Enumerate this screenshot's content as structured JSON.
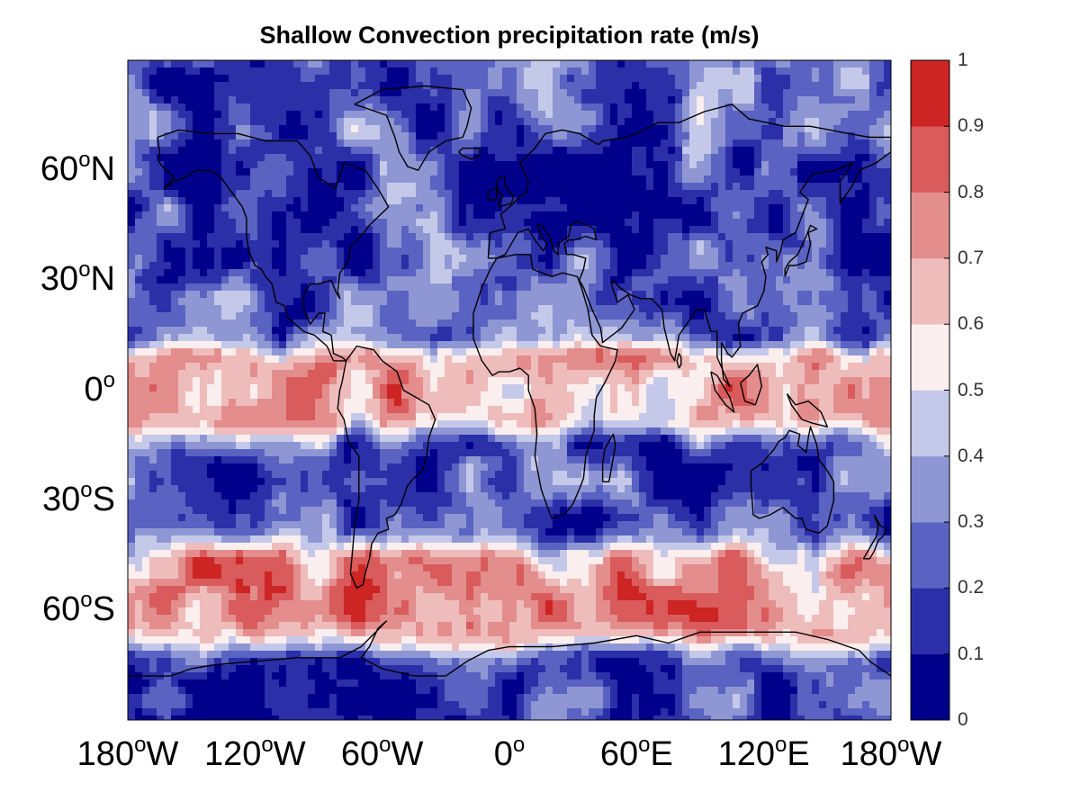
{
  "title": "Shallow Convection precipitation rate (m/s)",
  "latitude_ticks": [
    {
      "deg": "60",
      "hem": "N"
    },
    {
      "deg": "30",
      "hem": "N"
    },
    {
      "deg": "0",
      "hem": ""
    },
    {
      "deg": "30",
      "hem": "S"
    },
    {
      "deg": "60",
      "hem": "S"
    }
  ],
  "longitude_ticks": [
    {
      "deg": "180",
      "hem": "W"
    },
    {
      "deg": "120",
      "hem": "W"
    },
    {
      "deg": "60",
      "hem": "W"
    },
    {
      "deg": "0",
      "hem": ""
    },
    {
      "deg": "60",
      "hem": "E"
    },
    {
      "deg": "120",
      "hem": "E"
    },
    {
      "deg": "180",
      "hem": "W"
    }
  ],
  "degree_symbol": "o",
  "colorbar": {
    "ticks": [
      "0",
      "0.1",
      "0.2",
      "0.3",
      "0.4",
      "0.5",
      "0.6",
      "0.7",
      "0.8",
      "0.9",
      "1"
    ],
    "colors": [
      "#00008b",
      "#2b2fa8",
      "#5a62c2",
      "#8e97d3",
      "#c5c9e9",
      "#fbeeee",
      "#efbcbc",
      "#e38d8d",
      "#d95b5b",
      "#cd2424"
    ]
  },
  "chart_data": {
    "type": "heatmap",
    "title": "Shallow Convection precipitation rate (m/s)",
    "projection": "equirectangular",
    "lon_range": [
      -180,
      180
    ],
    "lat_range": [
      -90,
      90
    ],
    "color_range": [
      0,
      1
    ],
    "levels": [
      0,
      0.1,
      0.2,
      0.3,
      0.4,
      0.5,
      0.6,
      0.7,
      0.8,
      0.9,
      1
    ],
    "lat_ticks": [
      "60°N",
      "30°N",
      "0°",
      "30°S",
      "60°S"
    ],
    "lon_ticks": [
      "180°W",
      "120°W",
      "60°W",
      "0°",
      "60°E",
      "120°E",
      "180°W"
    ],
    "zonal_features": [
      {
        "lat_band": [
          70,
          90
        ],
        "value": 0.25
      },
      {
        "lat_band": [
          30,
          60
        ],
        "value": 0.2
      },
      {
        "lat_band": [
          15,
          30
        ],
        "value": 0.25
      },
      {
        "lat_band": [
          -8,
          8
        ],
        "value": 0.7
      },
      {
        "lat_band": [
          -40,
          -15
        ],
        "value": 0.2
      },
      {
        "lat_band": [
          -70,
          -45
        ],
        "value": 0.75
      },
      {
        "lat_band": [
          -90,
          -72
        ],
        "value": 0.15
      }
    ],
    "grid": false,
    "coastlines": true
  }
}
